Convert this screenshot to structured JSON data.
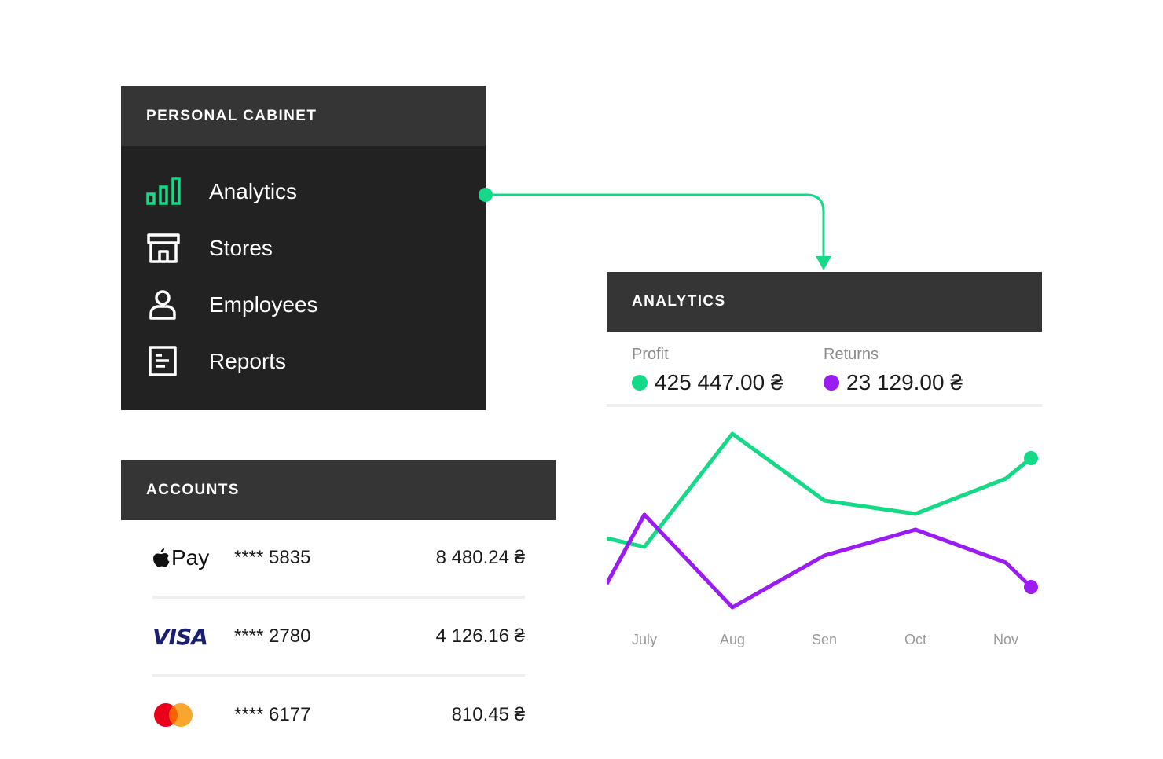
{
  "cabinet": {
    "title": "PERSONAL CABINET",
    "items": [
      {
        "label": "Analytics",
        "icon": "bar-chart-icon",
        "active": true
      },
      {
        "label": "Stores",
        "icon": "store-icon"
      },
      {
        "label": "Employees",
        "icon": "user-icon"
      },
      {
        "label": "Reports",
        "icon": "report-icon"
      }
    ]
  },
  "analytics": {
    "title": "ANALYTICS",
    "profit_label": "Profit",
    "profit_value": "425 447.00 ₴",
    "returns_label": "Returns",
    "returns_value": "23 129.00 ₴"
  },
  "chart_data": {
    "type": "line",
    "categories": [
      "July",
      "Aug",
      "Sen",
      "Oct",
      "Nov"
    ],
    "series": [
      {
        "name": "Profit",
        "color": "#14d987"
      },
      {
        "name": "Returns",
        "color": "#9b1cf2"
      }
    ],
    "grid": false
  },
  "accounts": {
    "title": "ACCOUNTS",
    "rows": [
      {
        "logo": "apple-pay-logo",
        "logo_text": "Pay",
        "number": "**** 5835",
        "amount": "8 480.24 ₴"
      },
      {
        "logo": "visa-logo",
        "logo_text": "VISA",
        "number": "**** 2780",
        "amount": "4 126.16 ₴"
      },
      {
        "logo": "mastercard-logo",
        "number": "**** 6177",
        "amount": "810.45 ₴"
      }
    ]
  },
  "colors": {
    "accent_green": "#14d987",
    "accent_purple": "#9b1cf2",
    "panel_dark": "#222222",
    "header_dark": "#353535"
  }
}
